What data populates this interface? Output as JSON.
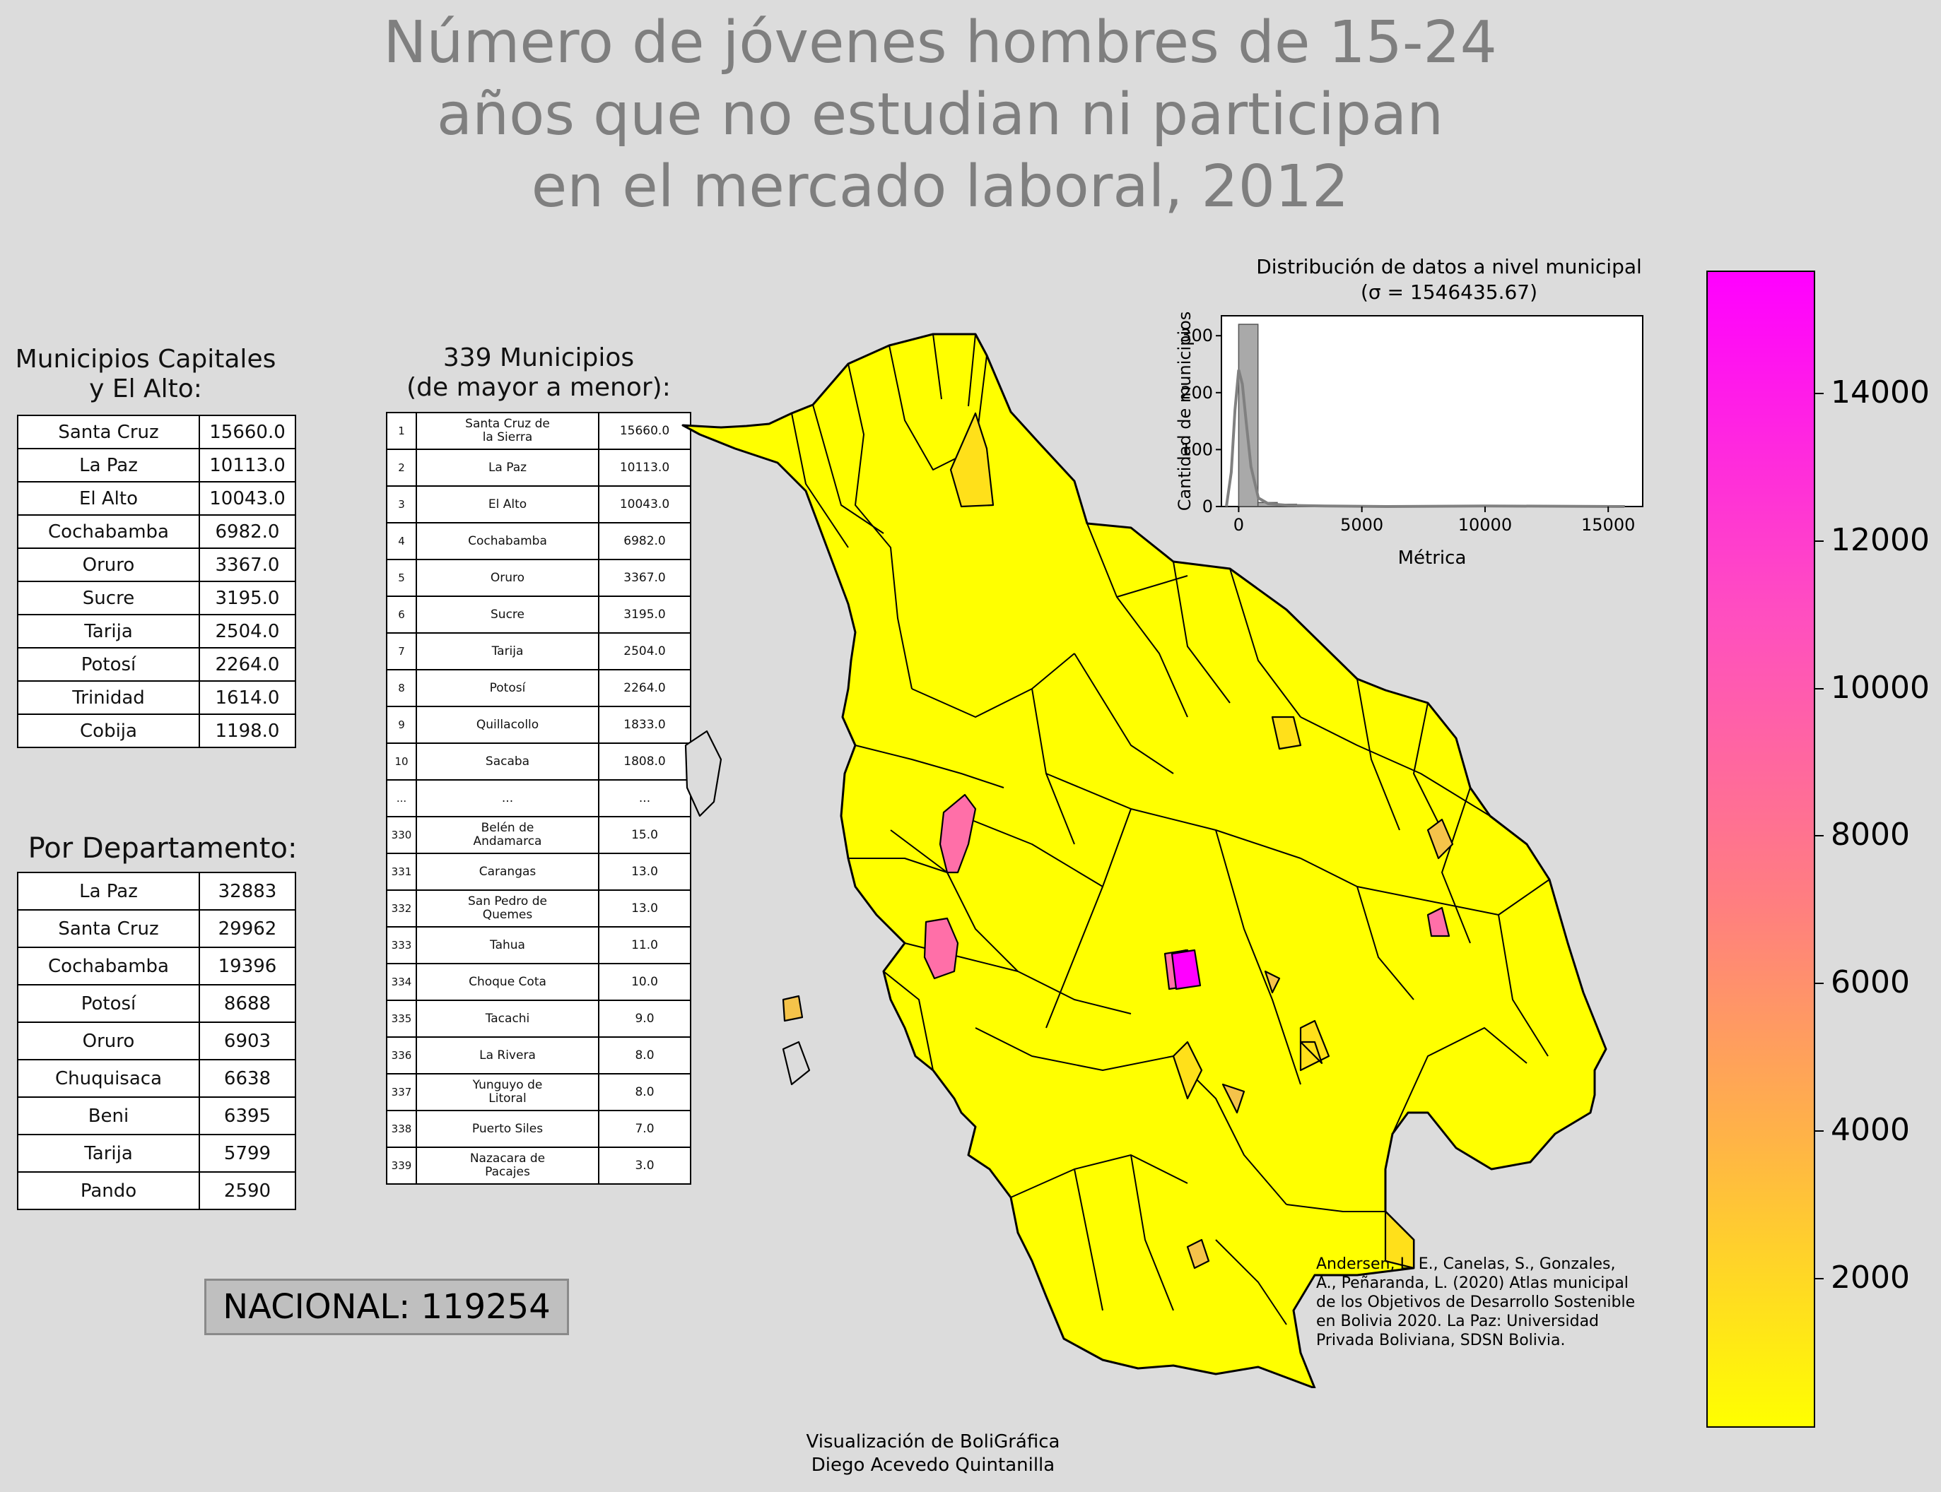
{
  "title": "Número de jóvenes hombres de 15-24\naños que no estudian ni participan\nen el mercado laboral, 2012",
  "capitals": {
    "title": "Municipios Capitales\ny El Alto:",
    "rows": [
      [
        "Santa Cruz",
        "15660.0"
      ],
      [
        "La Paz",
        "10113.0"
      ],
      [
        "El Alto",
        "10043.0"
      ],
      [
        "Cochabamba",
        "6982.0"
      ],
      [
        "Oruro",
        "3367.0"
      ],
      [
        "Sucre",
        "3195.0"
      ],
      [
        "Tarija",
        "2504.0"
      ],
      [
        "Potosí",
        "2264.0"
      ],
      [
        "Trinidad",
        "1614.0"
      ],
      [
        "Cobija",
        "1198.0"
      ]
    ]
  },
  "departments": {
    "title": "Por Departamento:",
    "rows": [
      [
        "La Paz",
        "32883"
      ],
      [
        "Santa Cruz",
        "29962"
      ],
      [
        "Cochabamba",
        "19396"
      ],
      [
        "Potosí",
        "8688"
      ],
      [
        "Oruro",
        "6903"
      ],
      [
        "Chuquisaca",
        "6638"
      ],
      [
        "Beni",
        "6395"
      ],
      [
        "Tarija",
        "5799"
      ],
      [
        "Pando",
        "2590"
      ]
    ]
  },
  "municipalities": {
    "title": "339 Municipios\n(de mayor a menor):",
    "rows": [
      [
        "1",
        "Santa Cruz de\nla Sierra",
        "15660.0"
      ],
      [
        "2",
        "La Paz",
        "10113.0"
      ],
      [
        "3",
        "El Alto",
        "10043.0"
      ],
      [
        "4",
        "Cochabamba",
        "6982.0"
      ],
      [
        "5",
        "Oruro",
        "3367.0"
      ],
      [
        "6",
        "Sucre",
        "3195.0"
      ],
      [
        "7",
        "Tarija",
        "2504.0"
      ],
      [
        "8",
        "Potosí",
        "2264.0"
      ],
      [
        "9",
        "Quillacollo",
        "1833.0"
      ],
      [
        "10",
        "Sacaba",
        "1808.0"
      ],
      [
        "...",
        "...",
        "..."
      ],
      [
        "330",
        "Belén de\nAndamarca",
        "15.0"
      ],
      [
        "331",
        "Carangas",
        "13.0"
      ],
      [
        "332",
        "San Pedro de\nQuemes",
        "13.0"
      ],
      [
        "333",
        "Tahua",
        "11.0"
      ],
      [
        "334",
        "Choque Cota",
        "10.0"
      ],
      [
        "335",
        "Tacachi",
        "9.0"
      ],
      [
        "336",
        "La Rivera",
        "8.0"
      ],
      [
        "337",
        "Yunguyo de\nLitoral",
        "8.0"
      ],
      [
        "338",
        "Puerto Siles",
        "7.0"
      ],
      [
        "339",
        "Nazacara de\nPacajes",
        "3.0"
      ]
    ]
  },
  "nacional": "NACIONAL: 119254",
  "histogram": {
    "title": "Distribución de datos a nivel municipal\n(σ = 1546435.67)",
    "xlabel": "Métrica",
    "ylabel": "Cantidad de municipios",
    "xticks": [
      "0",
      "5000",
      "10000",
      "15000"
    ],
    "yticks": [
      "0",
      "100",
      "200",
      "300"
    ]
  },
  "chart_data": {
    "type": "bar",
    "title": "Distribución de datos a nivel municipal (σ = 1546435.67)",
    "xlabel": "Métrica",
    "ylabel": "Cantidad de municipios",
    "xlim": [
      -700,
      16400
    ],
    "ylim": [
      0,
      335
    ],
    "bins": [
      {
        "start": 0,
        "end": 783,
        "count": 320
      },
      {
        "start": 783,
        "end": 1566,
        "count": 7
      },
      {
        "start": 1566,
        "end": 2349,
        "count": 4
      },
      {
        "start": 2349,
        "end": 3132,
        "count": 2
      },
      {
        "start": 3132,
        "end": 3915,
        "count": 2
      },
      {
        "start": 6264,
        "end": 7047,
        "count": 1
      },
      {
        "start": 9396,
        "end": 10179,
        "count": 2
      },
      {
        "start": 10179,
        "end": 10962,
        "count": 0
      },
      {
        "start": 14877,
        "end": 15660,
        "count": 1
      }
    ],
    "kde": [
      [
        -500,
        0
      ],
      [
        -300,
        60
      ],
      [
        -150,
        170
      ],
      [
        0,
        240
      ],
      [
        150,
        215
      ],
      [
        300,
        150
      ],
      [
        500,
        70
      ],
      [
        800,
        15
      ],
      [
        1200,
        5
      ],
      [
        2000,
        2
      ],
      [
        3500,
        1
      ],
      [
        6000,
        0
      ],
      [
        10000,
        1
      ],
      [
        15660,
        0
      ]
    ]
  },
  "colorbar": {
    "ticks": [
      "2000",
      "4000",
      "6000",
      "8000",
      "10000",
      "12000",
      "14000"
    ],
    "tick_values": [
      2000,
      4000,
      6000,
      8000,
      10000,
      12000,
      14000
    ],
    "min": 3,
    "max": 15660,
    "colors": [
      "#ffff00",
      "#ff00ff"
    ]
  },
  "citation": "Andersen, L. E., Canelas, S., Gonzales,\nA., Peñaranda, L. (2020) Atlas municipal\nde los Objetivos de Desarrollo Sostenible\nen Bolivia 2020. La Paz: Universidad\nPrivada Boliviana, SDSN Bolivia.",
  "footer": "Visualización de BoliGráfica\nDiego Acevedo Quintanilla",
  "map": {
    "fill_low": "#ffff00",
    "fill_mid": "#ffe01a",
    "fill_orange": "#f5c34a",
    "fill_pink": "#ff6fa8",
    "fill_magenta": "#ff00ff",
    "border": "#000000"
  }
}
